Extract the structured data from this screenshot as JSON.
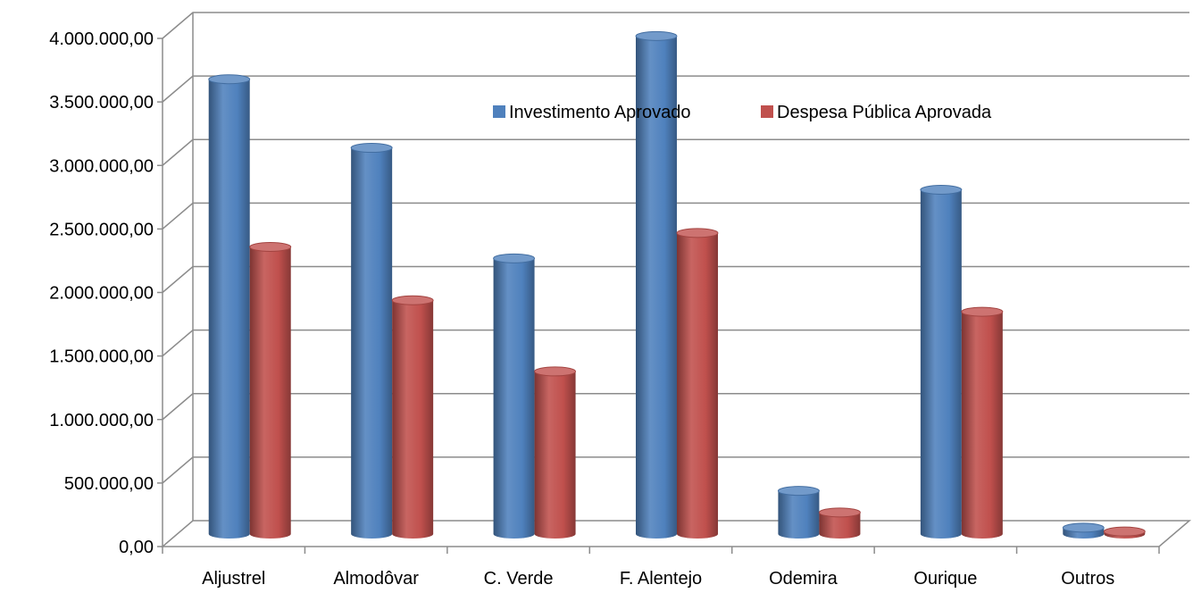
{
  "chart_data": {
    "type": "bar",
    "style": "3d-cylinder",
    "categories": [
      "Aljustrel",
      "Almodôvar",
      "C. Verde",
      "F. Alentejo",
      "Odemira",
      "Ourique",
      "Outros"
    ],
    "series": [
      {
        "name": "Investimento Aprovado",
        "color": "#4F81BD",
        "values": [
          3580000,
          3040000,
          2170000,
          3920000,
          340000,
          2710000,
          50000
        ]
      },
      {
        "name": "Despesa Pública Aprovada",
        "color": "#C0504D",
        "values": [
          2260000,
          1840000,
          1280000,
          2370000,
          170000,
          1750000,
          20000
        ]
      }
    ],
    "ylim": [
      0,
      4000000
    ],
    "y_ticks": [
      "0,00",
      "500.000,00",
      "1.000.000,00",
      "1.500.000,00",
      "2.000.000,00",
      "2.500.000,00",
      "3.000.000,00",
      "3.500.000,00",
      "4.000.000,00"
    ],
    "legend_position": "top-center",
    "grid": true
  }
}
